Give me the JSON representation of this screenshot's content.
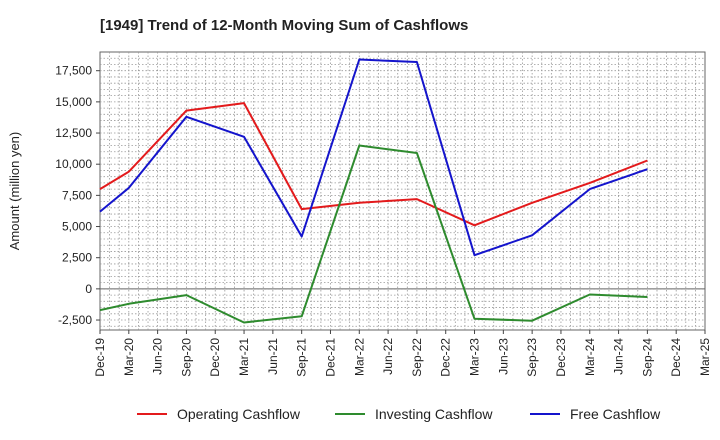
{
  "chart_data": {
    "type": "line",
    "title": "[1949]  Trend of 12-Month Moving Sum of Cashflows",
    "xlabel": "",
    "ylabel": "Amount (million yen)",
    "categories": [
      "Dec-19",
      "Mar-20",
      "Jun-20",
      "Sep-20",
      "Dec-20",
      "Mar-21",
      "Jun-21",
      "Sep-21",
      "Dec-21",
      "Mar-22",
      "Jun-22",
      "Sep-22",
      "Dec-22",
      "Mar-23",
      "Jun-23",
      "Sep-23",
      "Dec-23",
      "Mar-24",
      "Jun-24",
      "Sep-24",
      "Dec-24",
      "Mar-25"
    ],
    "ylim": [
      -3300,
      19000
    ],
    "yticks": [
      -2500,
      0,
      2500,
      5000,
      7500,
      10000,
      12500,
      15000,
      17500
    ],
    "ytick_labels": [
      "-2,500",
      "0",
      "2,500",
      "5,000",
      "7,500",
      "10,000",
      "12,500",
      "15,000",
      "17,500"
    ],
    "grid": true,
    "legend_position": "bottom",
    "series": [
      {
        "name": "Operating Cashflow",
        "color": "#e31a1c",
        "values": [
          8000,
          9400,
          null,
          14300,
          null,
          14900,
          null,
          6400,
          null,
          6900,
          null,
          7200,
          null,
          5100,
          null,
          6900,
          null,
          8500,
          null,
          10300,
          null,
          null
        ]
      },
      {
        "name": "Investing Cashflow",
        "color": "#2e8b2e",
        "values": [
          -1700,
          -1200,
          null,
          -500,
          null,
          -2700,
          null,
          -2200,
          null,
          11500,
          null,
          10900,
          null,
          -2400,
          null,
          -2550,
          null,
          -450,
          null,
          -650,
          null,
          null
        ]
      },
      {
        "name": "Free Cashflow",
        "color": "#1414cc",
        "values": [
          6200,
          8100,
          null,
          13800,
          null,
          12200,
          null,
          4200,
          null,
          18400,
          null,
          18200,
          null,
          2700,
          null,
          4300,
          null,
          8000,
          null,
          9600,
          null,
          null
        ]
      }
    ]
  }
}
